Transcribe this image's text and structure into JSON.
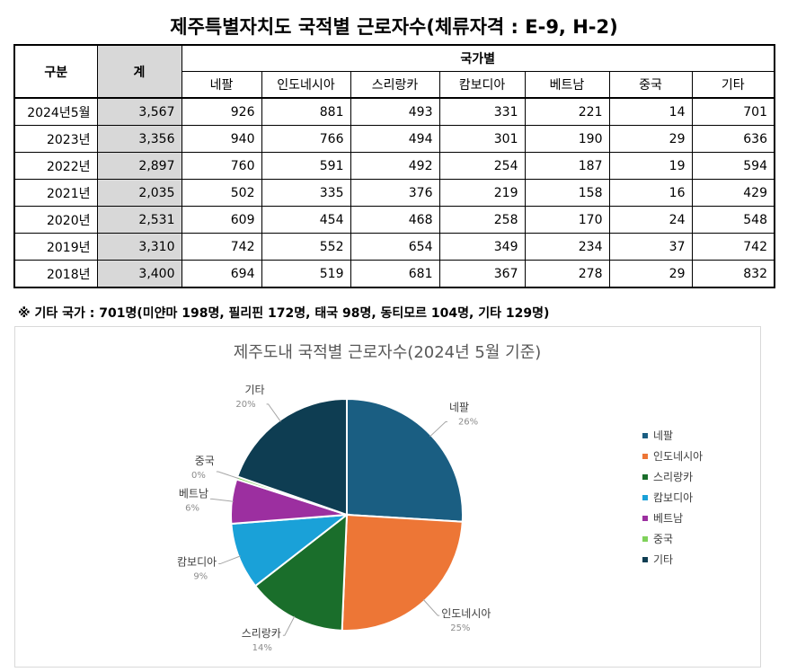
{
  "title": "제주특별자치도 국적별 근로자수(체류자격 : E-9, H-2)",
  "table": {
    "col_gubun": "구분",
    "col_total": "계",
    "group_header": "국가별",
    "countries": [
      "네팔",
      "인도네시아",
      "스리랑카",
      "캄보디아",
      "베트남",
      "중국",
      "기타"
    ],
    "rows": [
      {
        "period": "2024년5월",
        "total": "3,567",
        "values": [
          "926",
          "881",
          "493",
          "331",
          "221",
          "14",
          "701"
        ]
      },
      {
        "period": "2023년",
        "total": "3,356",
        "values": [
          "940",
          "766",
          "494",
          "301",
          "190",
          "29",
          "636"
        ]
      },
      {
        "period": "2022년",
        "total": "2,897",
        "values": [
          "760",
          "591",
          "492",
          "254",
          "187",
          "19",
          "594"
        ]
      },
      {
        "period": "2021년",
        "total": "2,035",
        "values": [
          "502",
          "335",
          "376",
          "219",
          "158",
          "16",
          "429"
        ]
      },
      {
        "period": "2020년",
        "total": "2,531",
        "values": [
          "609",
          "454",
          "468",
          "258",
          "170",
          "24",
          "548"
        ]
      },
      {
        "period": "2019년",
        "total": "3,310",
        "values": [
          "742",
          "552",
          "654",
          "349",
          "234",
          "37",
          "742"
        ]
      },
      {
        "period": "2018년",
        "total": "3,400",
        "values": [
          "694",
          "519",
          "681",
          "367",
          "278",
          "29",
          "832"
        ]
      }
    ]
  },
  "note": "※ 기타 국가 : 701명(미얀마 198명, 필리핀 172명, 태국 98명, 동티모르 104명, 기타 129명)",
  "chart_data": {
    "type": "pie",
    "title": "제주도내 국적별 근로자수(2024년 5월 기준)",
    "categories": [
      "네팔",
      "인도네시아",
      "스리랑카",
      "캄보디아",
      "베트남",
      "중국",
      "기타"
    ],
    "values": [
      926,
      881,
      493,
      331,
      221,
      14,
      701
    ],
    "percent_labels": [
      "26%",
      "25%",
      "14%",
      "9%",
      "6%",
      "0%",
      "20%"
    ],
    "colors": [
      "#1a5e82",
      "#ed7636",
      "#1a6e2b",
      "#1aa1d8",
      "#9c2fa0",
      "#7fd15a",
      "#0e3d52"
    ],
    "legend_position": "right"
  }
}
